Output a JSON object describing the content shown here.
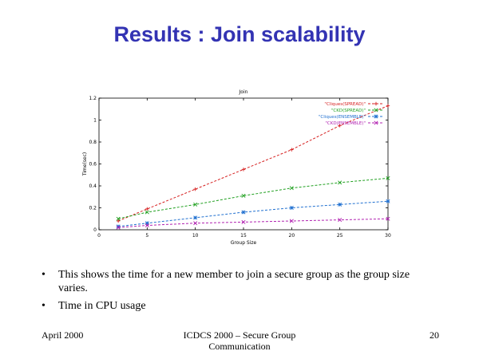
{
  "slide": {
    "title": "Results : Join scalability",
    "bullets": [
      "This shows the time for a new member to join a secure group as the group size varies.",
      "Time in CPU usage"
    ],
    "bullet_symbol": "•",
    "footer": {
      "left": "April 2000",
      "center_line1": "ICDCS 2000 – Secure Group",
      "center_line2": "Communication",
      "right": "20"
    }
  },
  "chart_data": {
    "type": "line",
    "title": "Join",
    "xlabel": "Group Size",
    "ylabel": "Time(sec)",
    "xlim": [
      0,
      30
    ],
    "ylim": [
      0,
      1.2
    ],
    "x_ticks": [
      0,
      5,
      10,
      15,
      20,
      25,
      30
    ],
    "y_ticks": [
      0,
      0.2,
      0.4,
      0.6,
      0.8,
      1,
      1.2
    ],
    "grid": false,
    "legend_position": "top-right",
    "series": [
      {
        "name": "\"Cliques(SPREAD)\"",
        "color": "#d62020",
        "marker": "plus",
        "x": [
          2,
          5,
          10,
          15,
          20,
          25,
          30
        ],
        "y": [
          0.08,
          0.19,
          0.37,
          0.55,
          0.73,
          0.95,
          1.13
        ]
      },
      {
        "name": "\"CKD(SPREAD)\"",
        "color": "#20a020",
        "marker": "cross",
        "x": [
          2,
          5,
          10,
          15,
          20,
          25,
          30
        ],
        "y": [
          0.1,
          0.16,
          0.23,
          0.31,
          0.38,
          0.43,
          0.47
        ]
      },
      {
        "name": "\"Cliques(ENSEMBLE)\"",
        "color": "#2070d0",
        "marker": "star",
        "x": [
          2,
          5,
          10,
          15,
          20,
          25,
          30
        ],
        "y": [
          0.03,
          0.06,
          0.11,
          0.16,
          0.2,
          0.23,
          0.26
        ]
      },
      {
        "name": "\"CKD(ENSEMBLE)\"",
        "color": "#b020b0",
        "marker": "x",
        "x": [
          2,
          5,
          10,
          15,
          20,
          25,
          30
        ],
        "y": [
          0.02,
          0.04,
          0.06,
          0.07,
          0.08,
          0.09,
          0.1
        ]
      }
    ]
  }
}
